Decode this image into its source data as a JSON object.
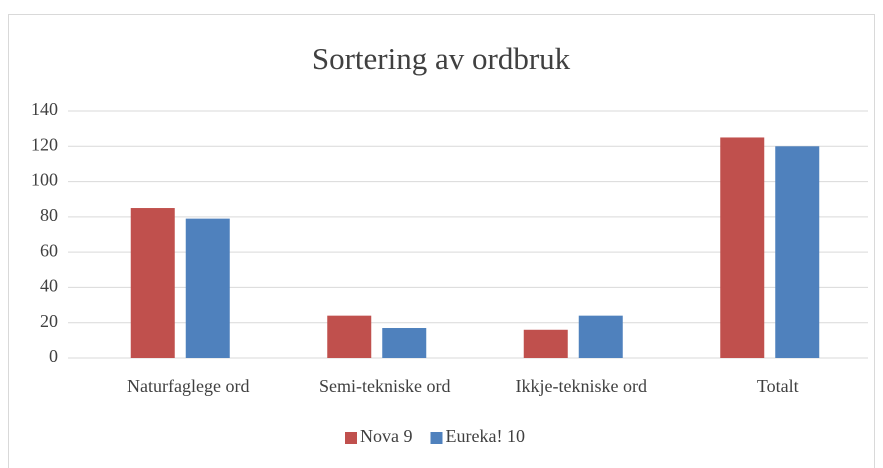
{
  "chart_data": {
    "type": "bar",
    "title": "Sortering av ordbruk",
    "categories": [
      "Naturfaglege ord",
      "Semi-tekniske ord",
      "Ikkje-tekniske ord",
      "Totalt"
    ],
    "series": [
      {
        "name": "Nova 9",
        "color": "#c0504d",
        "values": [
          85,
          24,
          16,
          125
        ]
      },
      {
        "name": "Eureka! 10",
        "color": "#4f81bd",
        "values": [
          79,
          17,
          24,
          120
        ]
      }
    ],
    "ylim": [
      0,
      140
    ],
    "yticks": [
      0,
      20,
      40,
      60,
      80,
      100,
      120,
      140
    ],
    "grid": true,
    "legend": "bottom"
  }
}
